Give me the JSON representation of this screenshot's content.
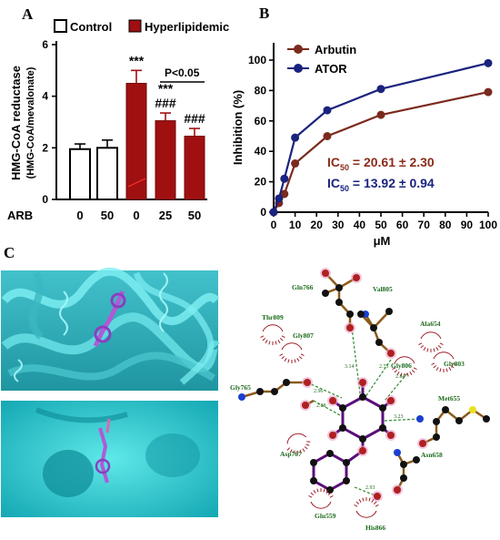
{
  "panels": {
    "a": "A",
    "b": "B",
    "c": "C"
  },
  "chart_data": [
    {
      "type": "bar",
      "legend": [
        "Control",
        "Hyperlipidemic"
      ],
      "ylabel_line1": "HMG-CoA reductase",
      "ylabel_line2": "(HMG-CoA/mevalonate)",
      "xgroup_label": "ARB",
      "categories": [
        "0",
        "50",
        "0",
        "25",
        "50"
      ],
      "values": [
        1.95,
        2.0,
        4.5,
        3.05,
        2.45
      ],
      "errors": [
        0.2,
        0.3,
        0.5,
        0.3,
        0.3
      ],
      "bar_group": [
        "Control",
        "Control",
        "Hyperlipidemic",
        "Hyperlipidemic",
        "Hyperlipidemic"
      ],
      "significance": [
        "",
        "",
        "***",
        "***\n###",
        "###"
      ],
      "comparison": "P<0.05",
      "ylim": [
        0,
        6
      ],
      "yticks": [
        0,
        2,
        4,
        6
      ],
      "colors": {
        "Control": "#ffffff",
        "Hyperlipidemic": "#a01010"
      }
    },
    {
      "type": "line",
      "xlabel": "μM",
      "ylabel": "Inhibition (%)",
      "xlim": [
        0,
        100
      ],
      "ylim": [
        0,
        100
      ],
      "xticks": [
        0,
        10,
        20,
        30,
        40,
        50,
        60,
        70,
        80,
        90,
        100
      ],
      "yticks": [
        0,
        20,
        40,
        60,
        80,
        100
      ],
      "legend_placement": "top-left",
      "series": [
        {
          "name": "Arbutin",
          "color": "#7b2a1e",
          "x": [
            0,
            2.5,
            5,
            10,
            25,
            50,
            100
          ],
          "y": [
            0,
            6,
            12,
            32,
            50,
            64,
            79
          ]
        },
        {
          "name": "ATOR",
          "color": "#1a237e",
          "x": [
            0,
            2.5,
            5,
            10,
            25,
            50,
            100
          ],
          "y": [
            0,
            9,
            22,
            49,
            67,
            81,
            98
          ]
        }
      ],
      "annotations": [
        {
          "prefix": "IC",
          "sub": "50",
          "text": " = 20.61 ± 2.30",
          "color": "#8b2c1a"
        },
        {
          "prefix": "IC",
          "sub": "50",
          "text": " = 13.92 ± 0.94",
          "color": "#1a237e"
        }
      ]
    }
  ],
  "interaction": {
    "residues": [
      "Gln766",
      "Val805",
      "Thr809",
      "Ala654",
      "Gly807",
      "Gly806",
      "Gly803",
      "Gly765",
      "Met655",
      "Asp767",
      "Asn658",
      "Glu559",
      "His866"
    ],
    "distances": [
      "3.14",
      "2.75",
      "2.84",
      "2.96",
      "2.88",
      "3.23",
      "2.93"
    ]
  }
}
